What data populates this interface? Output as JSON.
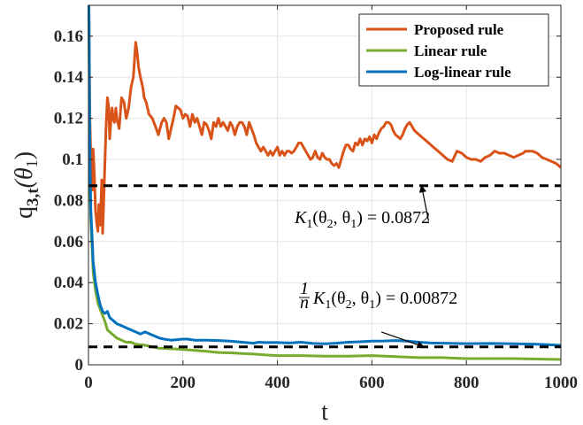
{
  "chart_data": {
    "type": "line",
    "title": "",
    "xlabel": "t",
    "ylabel": "q_{3,t}(θ_1)",
    "ylabel_main": "q",
    "ylabel_sub": "3,t",
    "ylabel_arg": "(θ",
    "ylabel_arg_sub": "1",
    "ylabel_close": ")",
    "xlim": [
      0,
      1000
    ],
    "ylim": [
      0,
      0.175
    ],
    "grid": true,
    "legend_position": "top-right",
    "xticks": [
      0,
      200,
      400,
      600,
      800,
      1000
    ],
    "xtick_labels": [
      "0",
      "200",
      "400",
      "600",
      "800",
      "1000"
    ],
    "yticks": [
      0,
      0.02,
      0.04,
      0.06,
      0.08,
      0.1,
      0.12,
      0.14,
      0.16
    ],
    "ytick_labels": [
      "0",
      "0.02",
      "0.04",
      "0.06",
      "0.08",
      "0.1",
      "0.12",
      "0.14",
      "0.16"
    ],
    "series": [
      {
        "name": "Proposed rule",
        "color": "#D95319",
        "points": [
          [
            1,
            0.175
          ],
          [
            3,
            0.12
          ],
          [
            5,
            0.1
          ],
          [
            8,
            0.085
          ],
          [
            10,
            0.105
          ],
          [
            12,
            0.095
          ],
          [
            15,
            0.075
          ],
          [
            18,
            0.068
          ],
          [
            20,
            0.065
          ],
          [
            22,
            0.078
          ],
          [
            25,
            0.068
          ],
          [
            28,
            0.09
          ],
          [
            30,
            0.064
          ],
          [
            32,
            0.078
          ],
          [
            35,
            0.1
          ],
          [
            37,
            0.115
          ],
          [
            40,
            0.13
          ],
          [
            43,
            0.125
          ],
          [
            45,
            0.11
          ],
          [
            48,
            0.12
          ],
          [
            50,
            0.125
          ],
          [
            52,
            0.12
          ],
          [
            55,
            0.118
          ],
          [
            58,
            0.125
          ],
          [
            60,
            0.12
          ],
          [
            65,
            0.115
          ],
          [
            70,
            0.13
          ],
          [
            75,
            0.128
          ],
          [
            80,
            0.12
          ],
          [
            85,
            0.125
          ],
          [
            90,
            0.135
          ],
          [
            95,
            0.14
          ],
          [
            100,
            0.157
          ],
          [
            103,
            0.152
          ],
          [
            106,
            0.145
          ],
          [
            110,
            0.14
          ],
          [
            115,
            0.135
          ],
          [
            118,
            0.13
          ],
          [
            122,
            0.128
          ],
          [
            128,
            0.122
          ],
          [
            135,
            0.12
          ],
          [
            142,
            0.116
          ],
          [
            148,
            0.112
          ],
          [
            155,
            0.118
          ],
          [
            160,
            0.12
          ],
          [
            165,
            0.118
          ],
          [
            170,
            0.11
          ],
          [
            175,
            0.115
          ],
          [
            180,
            0.12
          ],
          [
            185,
            0.126
          ],
          [
            190,
            0.125
          ],
          [
            195,
            0.124
          ],
          [
            200,
            0.12
          ],
          [
            205,
            0.122
          ],
          [
            210,
            0.121
          ],
          [
            215,
            0.116
          ],
          [
            220,
            0.122
          ],
          [
            225,
            0.118
          ],
          [
            230,
            0.12
          ],
          [
            235,
            0.116
          ],
          [
            240,
            0.112
          ],
          [
            245,
            0.118
          ],
          [
            250,
            0.117
          ],
          [
            255,
            0.114
          ],
          [
            260,
            0.11
          ],
          [
            265,
            0.118
          ],
          [
            270,
            0.116
          ],
          [
            275,
            0.12
          ],
          [
            280,
            0.116
          ],
          [
            285,
            0.118
          ],
          [
            290,
            0.116
          ],
          [
            295,
            0.114
          ],
          [
            300,
            0.118
          ],
          [
            305,
            0.116
          ],
          [
            310,
            0.112
          ],
          [
            315,
            0.116
          ],
          [
            320,
            0.118
          ],
          [
            325,
            0.118
          ],
          [
            330,
            0.116
          ],
          [
            335,
            0.112
          ],
          [
            340,
            0.118
          ],
          [
            345,
            0.115
          ],
          [
            350,
            0.112
          ],
          [
            355,
            0.108
          ],
          [
            360,
            0.106
          ],
          [
            365,
            0.104
          ],
          [
            370,
            0.106
          ],
          [
            375,
            0.104
          ],
          [
            380,
            0.102
          ],
          [
            385,
            0.104
          ],
          [
            390,
            0.102
          ],
          [
            395,
            0.104
          ],
          [
            400,
            0.106
          ],
          [
            405,
            0.102
          ],
          [
            410,
            0.104
          ],
          [
            415,
            0.102
          ],
          [
            420,
            0.104
          ],
          [
            425,
            0.104
          ],
          [
            430,
            0.103
          ],
          [
            435,
            0.104
          ],
          [
            440,
            0.106
          ],
          [
            445,
            0.108
          ],
          [
            450,
            0.108
          ],
          [
            455,
            0.106
          ],
          [
            460,
            0.104
          ],
          [
            465,
            0.102
          ],
          [
            470,
            0.1
          ],
          [
            475,
            0.101
          ],
          [
            480,
            0.104
          ],
          [
            485,
            0.101
          ],
          [
            490,
            0.1
          ],
          [
            495,
            0.103
          ],
          [
            500,
            0.101
          ],
          [
            505,
            0.1
          ],
          [
            510,
            0.1
          ],
          [
            515,
            0.098
          ],
          [
            520,
            0.097
          ],
          [
            525,
            0.098
          ],
          [
            530,
            0.096
          ],
          [
            535,
            0.1
          ],
          [
            540,
            0.104
          ],
          [
            545,
            0.107
          ],
          [
            550,
            0.107
          ],
          [
            555,
            0.105
          ],
          [
            560,
            0.104
          ],
          [
            565,
            0.108
          ],
          [
            570,
            0.107
          ],
          [
            575,
            0.11
          ],
          [
            580,
            0.107
          ],
          [
            585,
            0.11
          ],
          [
            590,
            0.109
          ],
          [
            595,
            0.111
          ],
          [
            600,
            0.108
          ],
          [
            605,
            0.112
          ],
          [
            610,
            0.11
          ],
          [
            615,
            0.113
          ],
          [
            620,
            0.115
          ],
          [
            625,
            0.116
          ],
          [
            630,
            0.118
          ],
          [
            635,
            0.118
          ],
          [
            640,
            0.117
          ],
          [
            645,
            0.114
          ],
          [
            650,
            0.112
          ],
          [
            655,
            0.111
          ],
          [
            660,
            0.11
          ],
          [
            665,
            0.112
          ],
          [
            670,
            0.115
          ],
          [
            675,
            0.117
          ],
          [
            680,
            0.118
          ],
          [
            685,
            0.116
          ],
          [
            690,
            0.114
          ],
          [
            700,
            0.112
          ],
          [
            710,
            0.11
          ],
          [
            720,
            0.108
          ],
          [
            730,
            0.106
          ],
          [
            740,
            0.104
          ],
          [
            750,
            0.102
          ],
          [
            760,
            0.1
          ],
          [
            770,
            0.099
          ],
          [
            780,
            0.104
          ],
          [
            790,
            0.103
          ],
          [
            800,
            0.101
          ],
          [
            810,
            0.1
          ],
          [
            820,
            0.1
          ],
          [
            830,
            0.099
          ],
          [
            840,
            0.101
          ],
          [
            850,
            0.102
          ],
          [
            860,
            0.104
          ],
          [
            870,
            0.103
          ],
          [
            880,
            0.103
          ],
          [
            890,
            0.102
          ],
          [
            900,
            0.101
          ],
          [
            910,
            0.102
          ],
          [
            920,
            0.103
          ],
          [
            925,
            0.104
          ],
          [
            930,
            0.104
          ],
          [
            940,
            0.104
          ],
          [
            950,
            0.103
          ],
          [
            960,
            0.101
          ],
          [
            970,
            0.1
          ],
          [
            980,
            0.099
          ],
          [
            990,
            0.098
          ],
          [
            1000,
            0.096
          ]
        ]
      },
      {
        "name": "Linear rule",
        "color": "#77AC30",
        "points": [
          [
            1,
            0.175
          ],
          [
            3,
            0.09
          ],
          [
            5,
            0.07
          ],
          [
            8,
            0.055
          ],
          [
            10,
            0.045
          ],
          [
            15,
            0.036
          ],
          [
            20,
            0.03
          ],
          [
            25,
            0.027
          ],
          [
            30,
            0.024
          ],
          [
            35,
            0.021
          ],
          [
            40,
            0.017
          ],
          [
            45,
            0.016
          ],
          [
            50,
            0.015
          ],
          [
            55,
            0.014
          ],
          [
            60,
            0.013
          ],
          [
            70,
            0.012
          ],
          [
            80,
            0.011
          ],
          [
            90,
            0.011
          ],
          [
            100,
            0.01
          ],
          [
            120,
            0.0095
          ],
          [
            150,
            0.008
          ],
          [
            175,
            0.0078
          ],
          [
            200,
            0.0075
          ],
          [
            225,
            0.007
          ],
          [
            250,
            0.0066
          ],
          [
            275,
            0.006
          ],
          [
            300,
            0.0058
          ],
          [
            325,
            0.0055
          ],
          [
            350,
            0.0052
          ],
          [
            375,
            0.0048
          ],
          [
            400,
            0.0045
          ],
          [
            450,
            0.0045
          ],
          [
            500,
            0.0042
          ],
          [
            550,
            0.0042
          ],
          [
            600,
            0.0045
          ],
          [
            650,
            0.004
          ],
          [
            700,
            0.0035
          ],
          [
            750,
            0.0035
          ],
          [
            800,
            0.003
          ],
          [
            850,
            0.003
          ],
          [
            900,
            0.003
          ],
          [
            950,
            0.0028
          ],
          [
            1000,
            0.0026
          ]
        ]
      },
      {
        "name": "Log-linear rule",
        "color": "#0072BD",
        "points": [
          [
            1,
            0.175
          ],
          [
            3,
            0.1
          ],
          [
            5,
            0.075
          ],
          [
            8,
            0.06
          ],
          [
            10,
            0.05
          ],
          [
            15,
            0.04
          ],
          [
            20,
            0.034
          ],
          [
            25,
            0.029
          ],
          [
            30,
            0.026
          ],
          [
            35,
            0.025
          ],
          [
            40,
            0.026
          ],
          [
            45,
            0.023
          ],
          [
            50,
            0.022
          ],
          [
            55,
            0.021
          ],
          [
            60,
            0.02
          ],
          [
            70,
            0.019
          ],
          [
            80,
            0.018
          ],
          [
            90,
            0.017
          ],
          [
            100,
            0.016
          ],
          [
            110,
            0.015
          ],
          [
            120,
            0.016
          ],
          [
            130,
            0.015
          ],
          [
            140,
            0.014
          ],
          [
            150,
            0.013
          ],
          [
            160,
            0.0125
          ],
          [
            175,
            0.012
          ],
          [
            200,
            0.0125
          ],
          [
            210,
            0.0125
          ],
          [
            225,
            0.012
          ],
          [
            250,
            0.012
          ],
          [
            275,
            0.0118
          ],
          [
            300,
            0.0115
          ],
          [
            325,
            0.011
          ],
          [
            350,
            0.0105
          ],
          [
            360,
            0.011
          ],
          [
            375,
            0.0108
          ],
          [
            400,
            0.0108
          ],
          [
            425,
            0.0106
          ],
          [
            450,
            0.011
          ],
          [
            475,
            0.0104
          ],
          [
            500,
            0.0102
          ],
          [
            525,
            0.0105
          ],
          [
            550,
            0.011
          ],
          [
            575,
            0.0112
          ],
          [
            600,
            0.0115
          ],
          [
            625,
            0.0116
          ],
          [
            650,
            0.0118
          ],
          [
            675,
            0.0115
          ],
          [
            700,
            0.011
          ],
          [
            725,
            0.0106
          ],
          [
            750,
            0.0105
          ],
          [
            775,
            0.0104
          ],
          [
            800,
            0.0103
          ],
          [
            850,
            0.0104
          ],
          [
            900,
            0.0102
          ],
          [
            950,
            0.01
          ],
          [
            1000,
            0.0095
          ]
        ]
      }
    ],
    "reference_lines": [
      {
        "name": "K1 reference",
        "y": 0.0872,
        "color": "#000000",
        "style": "dashed"
      },
      {
        "name": "K1 over n reference",
        "y": 0.00872,
        "color": "#000000",
        "style": "dashed"
      }
    ],
    "annotations": [
      {
        "name": "K1 annotation",
        "text_prefix": "K",
        "text_sub": "1",
        "text_body": "(θ",
        "text_sub2": "2",
        "text_mid": ", θ",
        "text_sub3": "1",
        "text_value": ") = 0.0872",
        "arrow_from": [
          720,
          0.07
        ],
        "arrow_to": [
          705,
          0.0872
        ]
      },
      {
        "name": "K1 over n annotation",
        "frac_num": "1",
        "frac_den": "n",
        "text_prefix": "K",
        "text_sub": "1",
        "text_body": "(θ",
        "text_sub2": "2",
        "text_mid": ", θ",
        "text_sub3": "1",
        "text_value": ") = 0.00872",
        "arrow_from": [
          620,
          0.016
        ],
        "arrow_to": [
          710,
          0.00872
        ]
      }
    ]
  }
}
